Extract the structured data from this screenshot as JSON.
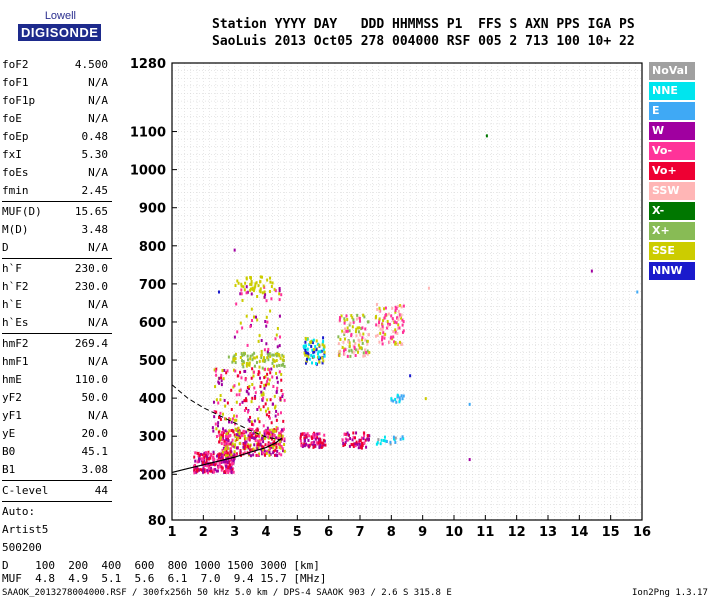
{
  "logo": {
    "brand_top": "Lowell",
    "brand_main": "DIGISONDE"
  },
  "header": {
    "line1": "Station YYYY DAY   DDD HHMMSS P1  FFS S AXN PPS IGA PS",
    "line2": "SaoLuis 2013 Oct05 278 004000 RSF 005 2 713 100 10+ 22"
  },
  "params": [
    {
      "name": "foF2",
      "value": "4.500"
    },
    {
      "name": "foF1",
      "value": "N/A"
    },
    {
      "name": "foF1p",
      "value": "N/A"
    },
    {
      "name": "foE",
      "value": "N/A"
    },
    {
      "name": "foEp",
      "value": "0.48"
    },
    {
      "name": "fxI",
      "value": "5.30"
    },
    {
      "name": "foEs",
      "value": "N/A"
    },
    {
      "name": "fmin",
      "value": "2.45"
    },
    {
      "sep": true
    },
    {
      "name": "MUF(D)",
      "value": "15.65"
    },
    {
      "name": "M(D)",
      "value": "3.48"
    },
    {
      "name": "D",
      "value": "N/A"
    },
    {
      "sep": true
    },
    {
      "name": "h`F",
      "value": "230.0"
    },
    {
      "name": "h`F2",
      "value": "230.0"
    },
    {
      "name": "h`E",
      "value": "N/A"
    },
    {
      "name": "h`Es",
      "value": "N/A"
    },
    {
      "sep": true
    },
    {
      "name": "hmF2",
      "value": "269.4"
    },
    {
      "name": "hmF1",
      "value": "N/A"
    },
    {
      "name": "hmE",
      "value": "110.0"
    },
    {
      "name": "yF2",
      "value": "50.0"
    },
    {
      "name": "yF1",
      "value": "N/A"
    },
    {
      "name": "yE",
      "value": "20.0"
    },
    {
      "name": "B0",
      "value": "45.1"
    },
    {
      "name": "B1",
      "value": "3.08"
    },
    {
      "sep": true
    },
    {
      "name": "C-level",
      "value": "44"
    },
    {
      "sep": true
    },
    {
      "text": "Auto:"
    },
    {
      "text": "Artist5"
    },
    {
      "text": "500200"
    }
  ],
  "legend": [
    {
      "label": "NoVal",
      "color": "#a0a0a0"
    },
    {
      "label": "NNE",
      "color": "#00e5ee"
    },
    {
      "label": "E",
      "color": "#3fa9f5"
    },
    {
      "label": "W",
      "color": "#a000a0"
    },
    {
      "label": "Vo-",
      "color": "#ff3399"
    },
    {
      "label": "Vo+",
      "color": "#ee0033"
    },
    {
      "label": "SSW",
      "color": "#ffb6b6"
    },
    {
      "label": "X-",
      "color": "#007700"
    },
    {
      "label": "X+",
      "color": "#88bb55"
    },
    {
      "label": "SSE",
      "color": "#cccc00"
    },
    {
      "label": "NNW",
      "color": "#1a1acc"
    }
  ],
  "chart_data": {
    "type": "scatter",
    "x_ticks": [
      1,
      2,
      3,
      4,
      5,
      6,
      7,
      8,
      9,
      10,
      11,
      12,
      13,
      14,
      15,
      16
    ],
    "y_tick_labels": [
      200,
      300,
      400,
      500,
      600,
      700,
      800,
      900,
      1000,
      1100
    ],
    "y_extra_labels": [
      80,
      1280
    ],
    "xlim": [
      1,
      16
    ],
    "ylim": [
      80,
      1280
    ],
    "grid": true,
    "clusters": [
      {
        "x": [
          1.7,
          3.0
        ],
        "y": [
          205,
          260
        ],
        "n": 240,
        "colors": [
          "#ee0033",
          "#ff3399",
          "#a000a0"
        ]
      },
      {
        "x": [
          2.5,
          4.6
        ],
        "y": [
          250,
          320
        ],
        "n": 320,
        "colors": [
          "#ee0033",
          "#ff3399",
          "#a000a0",
          "#cccc00"
        ]
      },
      {
        "x": [
          2.3,
          4.6
        ],
        "y": [
          300,
          480
        ],
        "n": 220,
        "colors": [
          "#ff3399",
          "#a000a0",
          "#ee0033",
          "#cccc00"
        ]
      },
      {
        "x": [
          2.8,
          4.6
        ],
        "y": [
          480,
          520
        ],
        "n": 90,
        "colors": [
          "#cccc00",
          "#88bb55"
        ]
      },
      {
        "x": [
          3.0,
          4.5
        ],
        "y": [
          520,
          700
        ],
        "n": 60,
        "colors": [
          "#cccc00",
          "#a000a0",
          "#ff3399"
        ]
      },
      {
        "x": [
          3.0,
          4.3
        ],
        "y": [
          680,
          720
        ],
        "n": 40,
        "colors": [
          "#cccc00"
        ]
      },
      {
        "x": [
          5.1,
          5.9
        ],
        "y": [
          270,
          310
        ],
        "n": 90,
        "colors": [
          "#ee0033",
          "#ff3399",
          "#a000a0"
        ]
      },
      {
        "x": [
          5.2,
          5.9
        ],
        "y": [
          490,
          560
        ],
        "n": 80,
        "colors": [
          "#1a1acc",
          "#cccc00",
          "#00e5ee"
        ]
      },
      {
        "x": [
          6.4,
          7.3
        ],
        "y": [
          270,
          310
        ],
        "n": 60,
        "colors": [
          "#ee0033",
          "#ff3399",
          "#a000a0"
        ]
      },
      {
        "x": [
          6.3,
          7.3
        ],
        "y": [
          510,
          620
        ],
        "n": 110,
        "colors": [
          "#cccc00",
          "#ff3399",
          "#ffb6b6",
          "#88bb55"
        ]
      },
      {
        "x": [
          7.5,
          8.4
        ],
        "y": [
          540,
          650
        ],
        "n": 100,
        "colors": [
          "#ffb6b6",
          "#cccc00",
          "#ff3399"
        ]
      },
      {
        "x": [
          7.5,
          8.4
        ],
        "y": [
          280,
          300
        ],
        "n": 20,
        "colors": [
          "#3fa9f5",
          "#00e5ee",
          "#a0a0a0"
        ]
      },
      {
        "x": [
          8.0,
          8.5
        ],
        "y": [
          390,
          410
        ],
        "n": 14,
        "colors": [
          "#3fa9f5",
          "#00e5ee"
        ]
      }
    ],
    "outliers": [
      {
        "x": 11.05,
        "y": 1090,
        "color": "#007700"
      },
      {
        "x": 14.4,
        "y": 735,
        "color": "#a000a0"
      },
      {
        "x": 15.85,
        "y": 680,
        "color": "#3fa9f5"
      },
      {
        "x": 10.5,
        "y": 240,
        "color": "#a000a0"
      },
      {
        "x": 10.5,
        "y": 385,
        "color": "#3fa9f5"
      },
      {
        "x": 9.2,
        "y": 690,
        "color": "#ffb6b6"
      },
      {
        "x": 3.0,
        "y": 790,
        "color": "#a000a0"
      },
      {
        "x": 2.5,
        "y": 680,
        "color": "#1a1acc"
      },
      {
        "x": 8.6,
        "y": 460,
        "color": "#1a1acc"
      },
      {
        "x": 9.1,
        "y": 400,
        "color": "#cccc00"
      }
    ],
    "profile_solid": [
      [
        1.0,
        205
      ],
      [
        1.5,
        215
      ],
      [
        2.0,
        225
      ],
      [
        2.5,
        235
      ],
      [
        3.0,
        245
      ],
      [
        3.5,
        258
      ],
      [
        4.0,
        270
      ],
      [
        4.3,
        282
      ],
      [
        4.5,
        295
      ]
    ],
    "profile_dashed": [
      [
        1.0,
        435
      ],
      [
        1.5,
        400
      ],
      [
        2.0,
        375
      ],
      [
        2.5,
        355
      ],
      [
        3.0,
        335
      ],
      [
        3.5,
        315
      ],
      [
        4.0,
        298
      ],
      [
        4.5,
        290
      ]
    ]
  },
  "footer": {
    "line_d": "D    100  200  400  600  800 1000 1500 3000 [km]",
    "line_muf": "MUF  4.8  4.9  5.1  5.6  6.1  7.0  9.4 15.7 [MHz]",
    "file": "SAAOK_2013278004000.RSF / 300fx256h 50 kHz 5.0 km / DPS-4 SAAOK 903 / 2.6 S 315.8 E",
    "version": "Ion2Png 1.3.17"
  }
}
